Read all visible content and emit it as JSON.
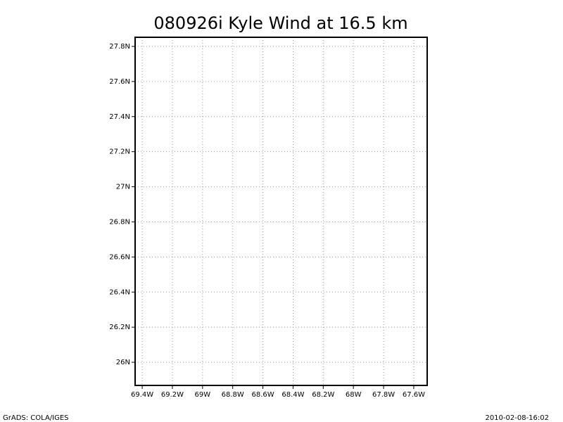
{
  "chart_data": {
    "type": "map",
    "title": "080926i Kyle Wind at 16.5 km",
    "xlim": [
      -69.447,
      -67.511
    ],
    "ylim": [
      25.868,
      27.852
    ],
    "xticks": [
      {
        "value": -69.4,
        "label": "69.4W"
      },
      {
        "value": -69.2,
        "label": "69.2W"
      },
      {
        "value": -69.0,
        "label": "69W"
      },
      {
        "value": -68.8,
        "label": "68.8W"
      },
      {
        "value": -68.6,
        "label": "68.6W"
      },
      {
        "value": -68.4,
        "label": "68.4W"
      },
      {
        "value": -68.2,
        "label": "68.2W"
      },
      {
        "value": -68.0,
        "label": "68W"
      },
      {
        "value": -67.8,
        "label": "67.8W"
      },
      {
        "value": -67.6,
        "label": "67.6W"
      }
    ],
    "yticks": [
      {
        "value": 26.0,
        "label": "26N"
      },
      {
        "value": 26.2,
        "label": "26.2N"
      },
      {
        "value": 26.4,
        "label": "26.4N"
      },
      {
        "value": 26.6,
        "label": "26.6N"
      },
      {
        "value": 26.8,
        "label": "26.8N"
      },
      {
        "value": 27.0,
        "label": "27N"
      },
      {
        "value": 27.2,
        "label": "27.2N"
      },
      {
        "value": 27.4,
        "label": "27.4N"
      },
      {
        "value": 27.6,
        "label": "27.6N"
      },
      {
        "value": 27.8,
        "label": "27.8N"
      }
    ],
    "grid": true,
    "footer_left": "GrADS: COLA/IGES",
    "footer_right": "2010-02-08-16:02"
  }
}
